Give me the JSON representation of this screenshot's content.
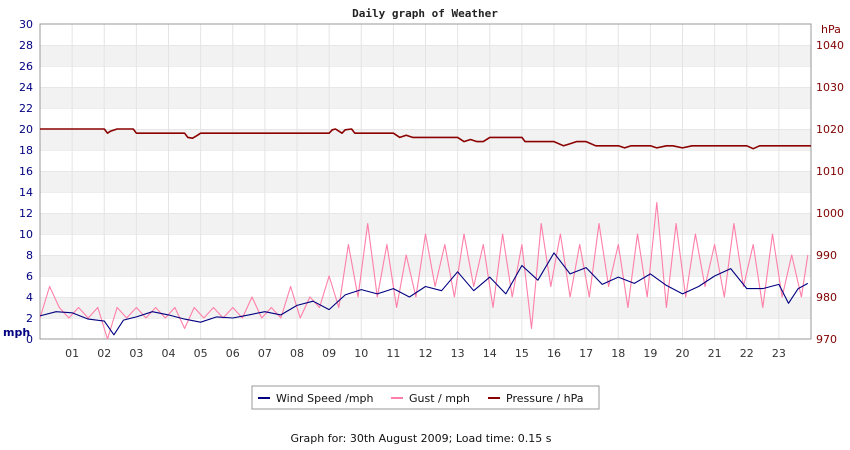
{
  "chart_data": {
    "type": "line",
    "title": "Daily graph of Weather",
    "x_ticks": [
      "01",
      "02",
      "03",
      "04",
      "05",
      "06",
      "07",
      "08",
      "09",
      "10",
      "11",
      "12",
      "13",
      "14",
      "15",
      "16",
      "17",
      "18",
      "19",
      "20",
      "21",
      "22",
      "23"
    ],
    "xlim": [
      0,
      24
    ],
    "left_axis": {
      "unit": "mph",
      "ylim": [
        0,
        30
      ],
      "ticks": [
        "0",
        "2",
        "4",
        "6",
        "8",
        "10",
        "12",
        "14",
        "16",
        "18",
        "20",
        "22",
        "24",
        "26",
        "28",
        "30"
      ]
    },
    "right_axis": {
      "unit": "hPa",
      "ylim": [
        970,
        1045
      ],
      "ticks": [
        "970",
        "980",
        "990",
        "1000",
        "1010",
        "1020",
        "1030",
        "1040"
      ]
    },
    "grid": true,
    "legend_position": "bottom-center",
    "series": [
      {
        "name": "Wind Speed /mph",
        "axis": "left",
        "color": "#000080",
        "x": [
          0,
          0.5,
          1,
          1.5,
          2,
          2.3,
          2.6,
          3,
          3.5,
          4,
          4.5,
          5,
          5.5,
          6,
          6.5,
          7,
          7.5,
          8,
          8.5,
          9,
          9.5,
          10,
          10.5,
          11,
          11.5,
          12,
          12.5,
          13,
          13.5,
          14,
          14.5,
          15,
          15.5,
          16,
          16.5,
          17,
          17.5,
          18,
          18.5,
          19,
          19.5,
          20,
          20.5,
          21,
          21.5,
          22,
          22.5,
          23,
          23.3,
          23.6,
          23.9
        ],
        "y": [
          2.2,
          2.6,
          2.5,
          1.9,
          1.7,
          0.4,
          1.8,
          2.1,
          2.6,
          2.3,
          1.9,
          1.6,
          2.1,
          2.0,
          2.3,
          2.6,
          2.3,
          3.2,
          3.6,
          2.8,
          4.2,
          4.7,
          4.3,
          4.8,
          4.0,
          5.0,
          4.6,
          6.4,
          4.6,
          5.9,
          4.3,
          7.0,
          5.6,
          8.2,
          6.2,
          6.8,
          5.2,
          5.9,
          5.3,
          6.2,
          5.1,
          4.3,
          5.0,
          6.0,
          6.7,
          4.8,
          4.8,
          5.2,
          3.4,
          4.8,
          5.3
        ]
      },
      {
        "name": "Gust / mph",
        "axis": "left",
        "color": "#ff7fa8",
        "x": [
          0,
          0.3,
          0.6,
          0.9,
          1.2,
          1.5,
          1.8,
          2.1,
          2.4,
          2.7,
          3,
          3.3,
          3.6,
          3.9,
          4.2,
          4.5,
          4.8,
          5.1,
          5.4,
          5.7,
          6,
          6.3,
          6.6,
          6.9,
          7.2,
          7.5,
          7.8,
          8.1,
          8.4,
          8.7,
          9,
          9.3,
          9.6,
          9.9,
          10.2,
          10.5,
          10.8,
          11.1,
          11.4,
          11.7,
          12,
          12.3,
          12.6,
          12.9,
          13.2,
          13.5,
          13.8,
          14.1,
          14.4,
          14.7,
          15,
          15.3,
          15.6,
          15.9,
          16.2,
          16.5,
          16.8,
          17.1,
          17.4,
          17.7,
          18,
          18.3,
          18.6,
          18.9,
          19.2,
          19.5,
          19.8,
          20.1,
          20.4,
          20.7,
          21,
          21.3,
          21.6,
          21.9,
          22.2,
          22.5,
          22.8,
          23.1,
          23.4,
          23.7,
          23.9
        ],
        "y": [
          2,
          5,
          3,
          2,
          3,
          2,
          3,
          0,
          3,
          2,
          3,
          2,
          3,
          2,
          3,
          1,
          3,
          2,
          3,
          2,
          3,
          2,
          4,
          2,
          3,
          2,
          5,
          2,
          4,
          3,
          6,
          3,
          9,
          4,
          11,
          4,
          9,
          3,
          8,
          4,
          10,
          5,
          9,
          4,
          10,
          5,
          9,
          3,
          10,
          4,
          9,
          1,
          11,
          5,
          10,
          4,
          9,
          4,
          11,
          5,
          9,
          3,
          10,
          4,
          13,
          3,
          11,
          4,
          10,
          5,
          9,
          4,
          11,
          5,
          9,
          3,
          10,
          4,
          8,
          4,
          8
        ]
      },
      {
        "name": "Pressure / hPa",
        "axis": "right",
        "color": "#8b0000",
        "x": [
          0,
          2,
          2.1,
          2.2,
          2.4,
          2.9,
          3,
          4.5,
          4.6,
          4.75,
          4.9,
          5,
          9,
          9.1,
          9.2,
          9.4,
          9.5,
          9.7,
          9.8,
          10,
          11,
          11.2,
          11.4,
          11.6,
          12,
          13,
          13.2,
          13.4,
          13.6,
          13.8,
          14,
          15,
          15.1,
          16,
          16.3,
          16.5,
          16.7,
          17,
          17.3,
          18,
          18.2,
          18.4,
          18.6,
          19,
          19.2,
          19.5,
          19.7,
          20,
          20.3,
          21,
          22,
          22.2,
          22.4,
          22.6,
          24
        ],
        "y": [
          1020,
          1020,
          1019,
          1019.5,
          1020,
          1020,
          1019,
          1019,
          1018,
          1017.8,
          1018.5,
          1019,
          1019,
          1019.8,
          1020,
          1019,
          1019.8,
          1020,
          1019,
          1019,
          1019,
          1018,
          1018.5,
          1018,
          1018,
          1018,
          1017,
          1017.5,
          1017,
          1017,
          1018,
          1018,
          1017,
          1017,
          1016,
          1016.5,
          1017,
          1017,
          1016,
          1016,
          1015.5,
          1016,
          1016,
          1016,
          1015.5,
          1016,
          1016,
          1015.5,
          1016,
          1016,
          1016,
          1015.3,
          1016,
          1016,
          1016
        ]
      }
    ]
  },
  "footer": "Graph for: 30th August 2009; Load time: 0.15 s"
}
